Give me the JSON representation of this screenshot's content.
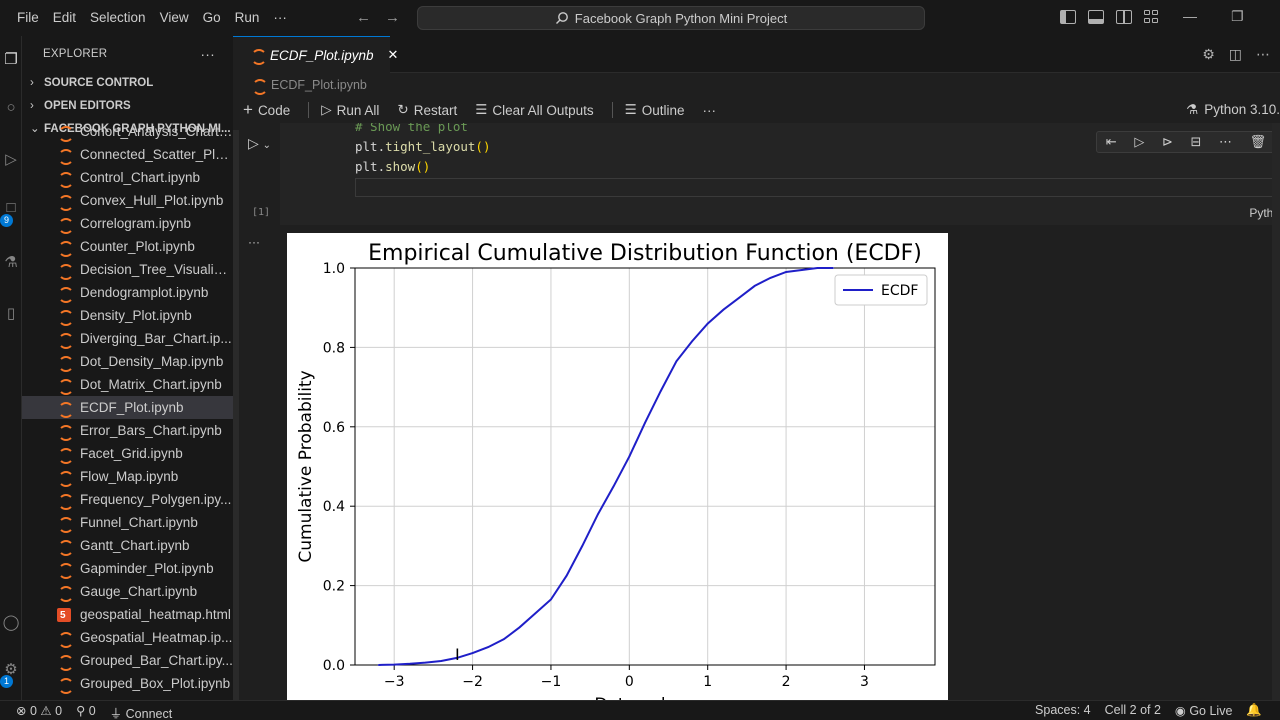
{
  "menu": [
    "File",
    "Edit",
    "Selection",
    "View",
    "Go",
    "Run",
    "···"
  ],
  "search": {
    "text": "Facebook Graph Python Mini Project"
  },
  "explorer": {
    "title": "EXPLORER",
    "more": "···",
    "sections": {
      "source_control": "SOURCE CONTROL",
      "open_editors": "OPEN EDITORS",
      "project": "FACEBOOK GRAPH PYTHON MI..."
    },
    "files": [
      {
        "name": "Cohort_Analysis_Chart.i...",
        "kind": "nb"
      },
      {
        "name": "Connected_Scatter_Plot...",
        "kind": "nb"
      },
      {
        "name": "Control_Chart.ipynb",
        "kind": "nb"
      },
      {
        "name": "Convex_Hull_Plot.ipynb",
        "kind": "nb"
      },
      {
        "name": "Correlogram.ipynb",
        "kind": "nb"
      },
      {
        "name": "Counter_Plot.ipynb",
        "kind": "nb"
      },
      {
        "name": "Decision_Tree_Visualisa...",
        "kind": "nb"
      },
      {
        "name": "Dendogramplot.ipynb",
        "kind": "nb"
      },
      {
        "name": "Density_Plot.ipynb",
        "kind": "nb"
      },
      {
        "name": "Diverging_Bar_Chart.ip...",
        "kind": "nb"
      },
      {
        "name": "Dot_Density_Map.ipynb",
        "kind": "nb"
      },
      {
        "name": "Dot_Matrix_Chart.ipynb",
        "kind": "nb"
      },
      {
        "name": "ECDF_Plot.ipynb",
        "kind": "nb",
        "active": true
      },
      {
        "name": "Error_Bars_Chart.ipynb",
        "kind": "nb"
      },
      {
        "name": "Facet_Grid.ipynb",
        "kind": "nb"
      },
      {
        "name": "Flow_Map.ipynb",
        "kind": "nb"
      },
      {
        "name": "Frequency_Polygen.ipy...",
        "kind": "nb"
      },
      {
        "name": "Funnel_Chart.ipynb",
        "kind": "nb"
      },
      {
        "name": "Gantt_Chart.ipynb",
        "kind": "nb"
      },
      {
        "name": "Gapminder_Plot.ipynb",
        "kind": "nb"
      },
      {
        "name": "Gauge_Chart.ipynb",
        "kind": "nb"
      },
      {
        "name": "geospatial_heatmap.html",
        "kind": "html"
      },
      {
        "name": "Geospatial_Heatmap.ip...",
        "kind": "nb"
      },
      {
        "name": "Grouped_Bar_Chart.ipy...",
        "kind": "nb"
      },
      {
        "name": "Grouped_Box_Plot.ipynb",
        "kind": "nb"
      }
    ]
  },
  "activity_badges": {
    "scm": "9",
    "accounts": "1"
  },
  "tab": {
    "label": "ECDF_Plot.ipynb",
    "close": "✕"
  },
  "breadcrumb": "ECDF_Plot.ipynb",
  "toolbar": {
    "code": "Code",
    "run_all": "Run All",
    "restart": "Restart",
    "clear": "Clear All Outputs",
    "outline": "Outline",
    "more": "···",
    "kernel": "Python 3.10."
  },
  "cell": {
    "lines": [
      "# Show the plot",
      "plt.tight_layout()",
      "plt.show()"
    ],
    "exec_count": "[1]",
    "language": "Pytho"
  },
  "chart_data": {
    "type": "line",
    "title": "Empirical Cumulative Distribution Function (ECDF)",
    "xlabel": "Data values",
    "ylabel": "Cumulative Probability",
    "xlim": [
      -3.5,
      3.9
    ],
    "ylim": [
      0,
      1
    ],
    "xticks": [
      "−3",
      "−2",
      "−1",
      "0",
      "1",
      "2",
      "3"
    ],
    "xtick_values": [
      -3,
      -2,
      -1,
      0,
      1,
      2,
      3
    ],
    "yticks": [
      "0.0",
      "0.2",
      "0.4",
      "0.6",
      "0.8",
      "1.0"
    ],
    "ytick_values": [
      0,
      0.2,
      0.4,
      0.6,
      0.8,
      1.0
    ],
    "grid": true,
    "legend": "top-right",
    "color": "#1f1fc8",
    "series": [
      {
        "name": "ECDF",
        "x": [
          -3.2,
          -3.0,
          -2.8,
          -2.6,
          -2.4,
          -2.2,
          -2.0,
          -1.8,
          -1.6,
          -1.4,
          -1.2,
          -1.0,
          -0.8,
          -0.6,
          -0.4,
          -0.2,
          0.0,
          0.2,
          0.4,
          0.6,
          0.8,
          1.0,
          1.2,
          1.4,
          1.6,
          1.8,
          2.0,
          2.2,
          2.4,
          2.6
        ],
        "y": [
          0.0,
          0.001,
          0.003,
          0.006,
          0.01,
          0.018,
          0.03,
          0.045,
          0.065,
          0.095,
          0.13,
          0.165,
          0.225,
          0.3,
          0.38,
          0.45,
          0.525,
          0.61,
          0.69,
          0.765,
          0.815,
          0.86,
          0.895,
          0.925,
          0.955,
          0.975,
          0.99,
          0.995,
          1.0,
          1.0
        ]
      }
    ]
  },
  "status": {
    "errors": "0",
    "warnings": "0",
    "ports": "0",
    "connect": "Connect",
    "spaces": "Spaces: 4",
    "cell": "Cell 2 of 2",
    "golive": "Go Live"
  }
}
